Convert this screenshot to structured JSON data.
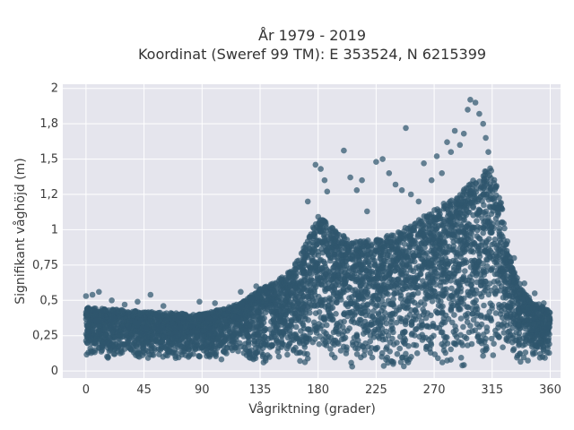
{
  "chart_data": {
    "type": "scatter",
    "title": "År 1979 - 2019",
    "subtitle": "Koordinat (Sweref 99 TM): E 353524, N 6215399",
    "xlabel": "Vågriktning (grader)",
    "ylabel": "Signifikant våghöjd (m)",
    "xlim": [
      -18,
      368
    ],
    "ylim": [
      -0.05,
      2.03
    ],
    "x_ticks": [
      0,
      45,
      90,
      135,
      180,
      225,
      270,
      315,
      360
    ],
    "x_tick_labels": [
      "0",
      "45",
      "90",
      "135",
      "180",
      "225",
      "270",
      "315",
      "360"
    ],
    "y_ticks": [
      0,
      0.25,
      0.5,
      0.75,
      1,
      1.25,
      1.5,
      1.75,
      2
    ],
    "y_tick_labels": [
      "0",
      "0,25",
      "0,5",
      "0,75",
      "1",
      "1,2",
      "1,5",
      "1,8",
      "2"
    ],
    "grid": true,
    "marker_color": "#2f566e",
    "band_envelope": {
      "x": [
        0,
        45,
        90,
        120,
        135,
        150,
        160,
        170,
        180,
        195,
        210,
        225,
        240,
        255,
        270,
        285,
        295,
        305,
        315,
        322,
        330,
        340,
        350,
        360
      ],
      "lower": [
        0.08,
        0.08,
        0.08,
        0.07,
        0.05,
        0.04,
        0.03,
        0.02,
        0.01,
        0.01,
        0.01,
        0.01,
        0.01,
        0.01,
        0.01,
        0.01,
        0.01,
        0.01,
        0.01,
        0.02,
        0.03,
        0.04,
        0.05,
        0.06
      ],
      "upper": [
        0.45,
        0.42,
        0.4,
        0.48,
        0.58,
        0.65,
        0.72,
        0.9,
        1.1,
        0.98,
        0.92,
        0.93,
        0.98,
        1.05,
        1.15,
        1.22,
        1.3,
        1.4,
        1.45,
        1.2,
        0.75,
        0.55,
        0.48,
        0.42
      ]
    },
    "outlier_points": [
      {
        "x": 0,
        "y": 0.53
      },
      {
        "x": 5,
        "y": 0.54
      },
      {
        "x": 10,
        "y": 0.56
      },
      {
        "x": 20,
        "y": 0.5
      },
      {
        "x": 30,
        "y": 0.47
      },
      {
        "x": 40,
        "y": 0.49
      },
      {
        "x": 50,
        "y": 0.54
      },
      {
        "x": 60,
        "y": 0.46
      },
      {
        "x": 88,
        "y": 0.49
      },
      {
        "x": 100,
        "y": 0.48
      },
      {
        "x": 120,
        "y": 0.56
      },
      {
        "x": 132,
        "y": 0.6
      },
      {
        "x": 172,
        "y": 1.2
      },
      {
        "x": 178,
        "y": 1.46
      },
      {
        "x": 182,
        "y": 1.43
      },
      {
        "x": 185,
        "y": 1.35
      },
      {
        "x": 187,
        "y": 1.27
      },
      {
        "x": 200,
        "y": 1.56
      },
      {
        "x": 205,
        "y": 1.37
      },
      {
        "x": 210,
        "y": 1.28
      },
      {
        "x": 214,
        "y": 1.35
      },
      {
        "x": 218,
        "y": 1.13
      },
      {
        "x": 225,
        "y": 1.48
      },
      {
        "x": 230,
        "y": 1.5
      },
      {
        "x": 235,
        "y": 1.4
      },
      {
        "x": 240,
        "y": 1.32
      },
      {
        "x": 245,
        "y": 1.28
      },
      {
        "x": 248,
        "y": 1.72
      },
      {
        "x": 252,
        "y": 1.25
      },
      {
        "x": 258,
        "y": 1.2
      },
      {
        "x": 262,
        "y": 1.47
      },
      {
        "x": 268,
        "y": 1.35
      },
      {
        "x": 272,
        "y": 1.52
      },
      {
        "x": 276,
        "y": 1.4
      },
      {
        "x": 280,
        "y": 1.62
      },
      {
        "x": 283,
        "y": 1.55
      },
      {
        "x": 286,
        "y": 1.7
      },
      {
        "x": 290,
        "y": 1.6
      },
      {
        "x": 293,
        "y": 1.68
      },
      {
        "x": 296,
        "y": 1.85
      },
      {
        "x": 298,
        "y": 1.92
      },
      {
        "x": 302,
        "y": 1.9
      },
      {
        "x": 305,
        "y": 1.82
      },
      {
        "x": 308,
        "y": 1.75
      },
      {
        "x": 310,
        "y": 1.65
      },
      {
        "x": 312,
        "y": 1.55
      },
      {
        "x": 318,
        "y": 1.3
      },
      {
        "x": 322,
        "y": 1.05
      },
      {
        "x": 326,
        "y": 0.9
      },
      {
        "x": 332,
        "y": 0.8
      },
      {
        "x": 340,
        "y": 0.62
      },
      {
        "x": 348,
        "y": 0.55
      },
      {
        "x": 355,
        "y": 0.48
      },
      {
        "x": 358,
        "y": 0.43
      }
    ]
  }
}
